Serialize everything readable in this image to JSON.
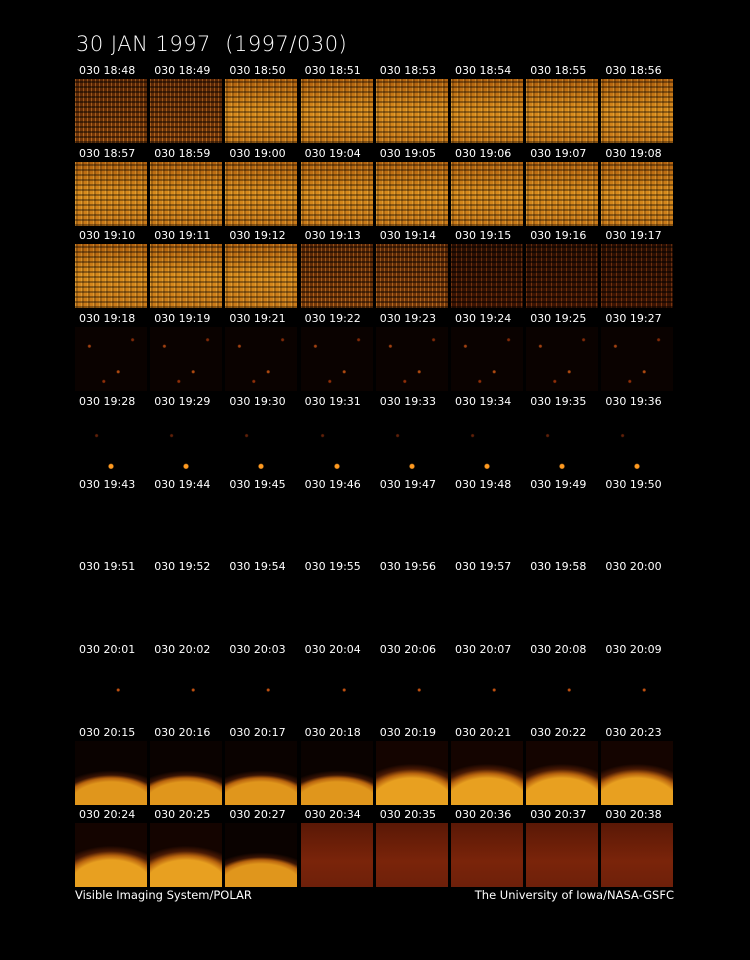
{
  "header": {
    "title": "30 JAN 1997  (1997/030)"
  },
  "frames": [
    [
      "030 18:48",
      "030 18:49",
      "030 18:50",
      "030 18:51",
      "030 18:53",
      "030 18:54",
      "030 18:55",
      "030 18:56"
    ],
    [
      "030 18:57",
      "030 18:59",
      "030 19:00",
      "030 19:04",
      "030 19:05",
      "030 19:06",
      "030 19:07",
      "030 19:08"
    ],
    [
      "030 19:10",
      "030 19:11",
      "030 19:12",
      "030 19:13",
      "030 19:14",
      "030 19:15",
      "030 19:16",
      "030 19:17"
    ],
    [
      "030 19:18",
      "030 19:19",
      "030 19:21",
      "030 19:22",
      "030 19:23",
      "030 19:24",
      "030 19:25",
      "030 19:27"
    ],
    [
      "030 19:28",
      "030 19:29",
      "030 19:30",
      "030 19:31",
      "030 19:33",
      "030 19:34",
      "030 19:35",
      "030 19:36"
    ],
    [
      "030 19:43",
      "030 19:44",
      "030 19:45",
      "030 19:46",
      "030 19:47",
      "030 19:48",
      "030 19:49",
      "030 19:50"
    ],
    [
      "030 19:51",
      "030 19:52",
      "030 19:54",
      "030 19:55",
      "030 19:56",
      "030 19:57",
      "030 19:58",
      "030 20:00"
    ],
    [
      "030 20:01",
      "030 20:02",
      "030 20:03",
      "030 20:04",
      "030 20:06",
      "030 20:07",
      "030 20:08",
      "030 20:09"
    ],
    [
      "030 20:15",
      "030 20:16",
      "030 20:17",
      "030 20:18",
      "030 20:19",
      "030 20:21",
      "030 20:22",
      "030 20:23"
    ],
    [
      "030 20:24",
      "030 20:25",
      "030 20:27",
      "030 20:34",
      "030 20:35",
      "030 20:36",
      "030 20:37",
      "030 20:38"
    ]
  ],
  "footer": {
    "left": "Visible Imaging System/POLAR",
    "right": "The University of Iowa/NASA-GSFC"
  }
}
